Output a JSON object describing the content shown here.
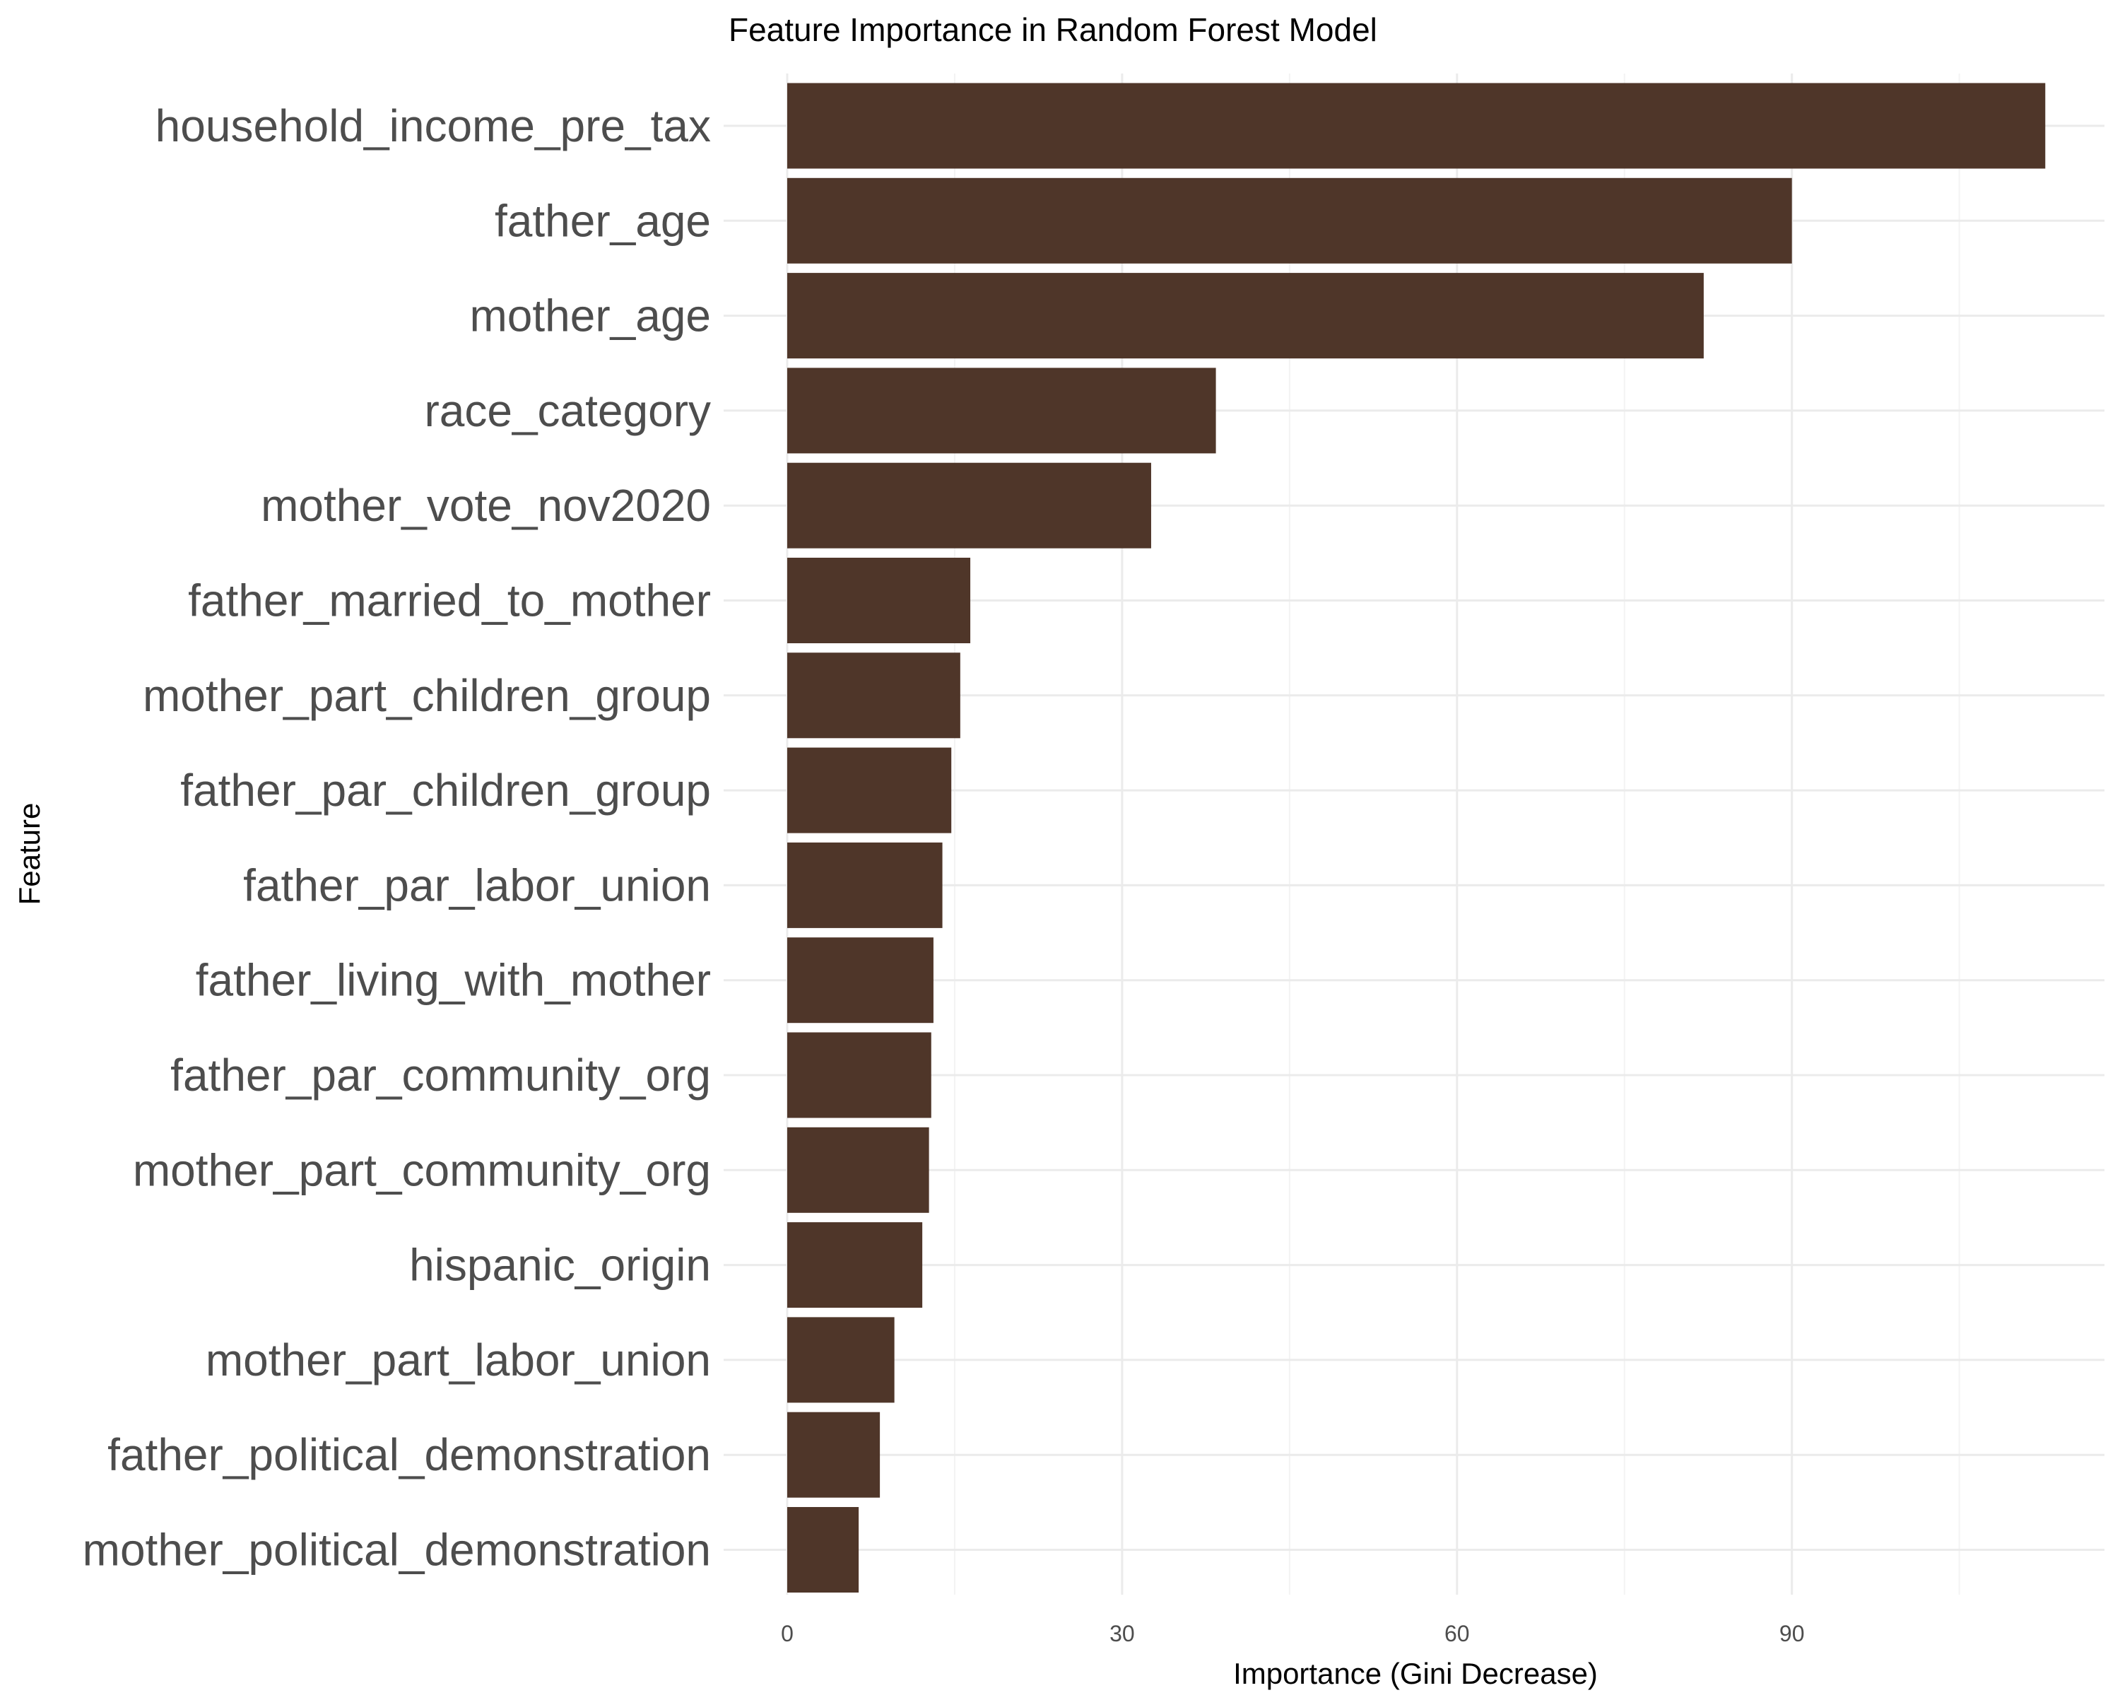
{
  "chart_data": {
    "type": "bar",
    "orientation": "horizontal",
    "title": "Feature Importance in Random Forest Model",
    "xlabel": "Importance (Gini Decrease)",
    "ylabel": "Feature",
    "categories": [
      "household_income_pre_tax",
      "father_age",
      "mother_age",
      "race_category",
      "mother_vote_nov2020",
      "father_married_to_mother",
      "mother_part_children_group",
      "father_par_children_group",
      "father_par_labor_union",
      "father_living_with_mother",
      "father_par_community_org",
      "mother_part_community_org",
      "hispanic_origin",
      "mother_part_labor_union",
      "father_political_demonstration",
      "mother_political_demonstration"
    ],
    "values": [
      112.7,
      90.0,
      82.1,
      38.4,
      32.6,
      16.4,
      15.5,
      14.7,
      13.9,
      13.1,
      12.9,
      12.7,
      12.1,
      9.6,
      8.3,
      6.4
    ],
    "xlim": [
      0,
      118
    ],
    "xticks": [
      "0",
      "30",
      "60",
      "90"
    ],
    "xtick_values": [
      0,
      30,
      60,
      90
    ],
    "grid": true,
    "legend": "none",
    "bar_color": "#4f3629"
  }
}
